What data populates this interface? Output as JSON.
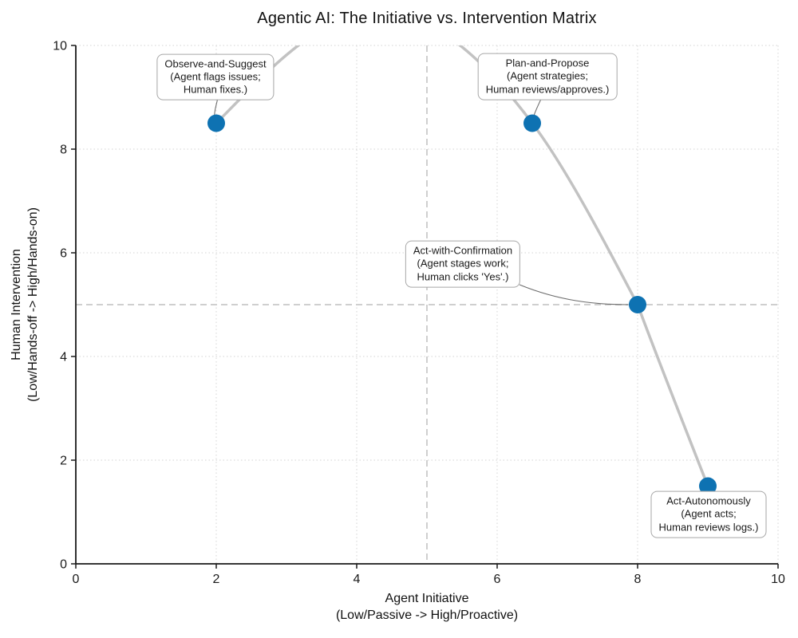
{
  "chart_data": {
    "type": "scatter",
    "title": "Agentic AI: The Initiative vs. Intervention Matrix",
    "xlabel": {
      "line1": "Agent Initiative",
      "line2": "(Low/Passive -> High/Proactive)"
    },
    "ylabel": {
      "line1": "Human Intervention",
      "line2": "(Low/Hands-off -> High/Hands-on)"
    },
    "xlim": [
      0,
      10
    ],
    "ylim": [
      0,
      10
    ],
    "xticks": [
      0,
      2,
      4,
      6,
      8,
      10
    ],
    "yticks": [
      0,
      2,
      4,
      6,
      8,
      10
    ],
    "grid": "dotted",
    "quadrant_lines": {
      "x": 5,
      "y": 5,
      "style": "dashed"
    },
    "curve": {
      "type": "smooth-spline-through-points",
      "color": "#c2c2c2"
    },
    "point_color": "#0e72b2",
    "points": [
      {
        "x": 2,
        "y": 8.5,
        "label": "Observe-and-Suggest",
        "desc": [
          "(Agent flags issues;",
          "Human fixes.)"
        ]
      },
      {
        "x": 6.5,
        "y": 8.5,
        "label": "Plan-and-Propose",
        "desc": [
          "(Agent strategies;",
          "Human reviews/approves.)"
        ]
      },
      {
        "x": 8,
        "y": 5,
        "label": "Act-with-Confirmation",
        "desc": [
          "(Agent stages work;",
          "Human clicks 'Yes'.)"
        ]
      },
      {
        "x": 9,
        "y": 1.5,
        "label": "Act-Autonomously",
        "desc": [
          "(Agent acts;",
          "Human reviews logs.)"
        ]
      }
    ]
  }
}
